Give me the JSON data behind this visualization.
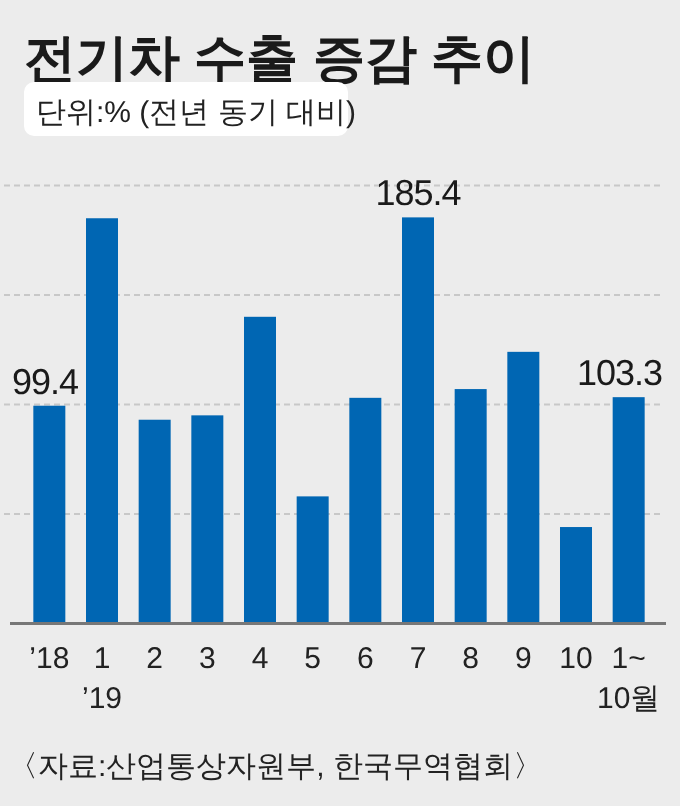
{
  "chart_data": {
    "type": "bar",
    "title": "전기차 수출 증감 추이",
    "subtitle": "단위:% (전년 동기 대비)",
    "categories": [
      "’18",
      "1\n’19",
      "2",
      "3",
      "4",
      "5",
      "6",
      "7",
      "8",
      "9",
      "10",
      "1~\n10월"
    ],
    "values": [
      99.4,
      185,
      93,
      95,
      140,
      58,
      103,
      185.4,
      107,
      124,
      44,
      103.3
    ],
    "value_labels": [
      "99.4",
      null,
      null,
      null,
      null,
      null,
      null,
      "185.4",
      null,
      null,
      null,
      "103.3"
    ],
    "color": "#0066b3",
    "ylim": [
      0,
      200
    ],
    "yticks": [
      {
        "value": 50,
        "label": null
      },
      {
        "value": 100,
        "label": null
      },
      {
        "value": 150,
        "label": null
      },
      {
        "value": 200,
        "label": null
      }
    ],
    "grid": "y",
    "tick_labels": "x",
    "annotations": [
      "〈자료:산업통상자원부, 한국무역협회〉"
    ]
  }
}
